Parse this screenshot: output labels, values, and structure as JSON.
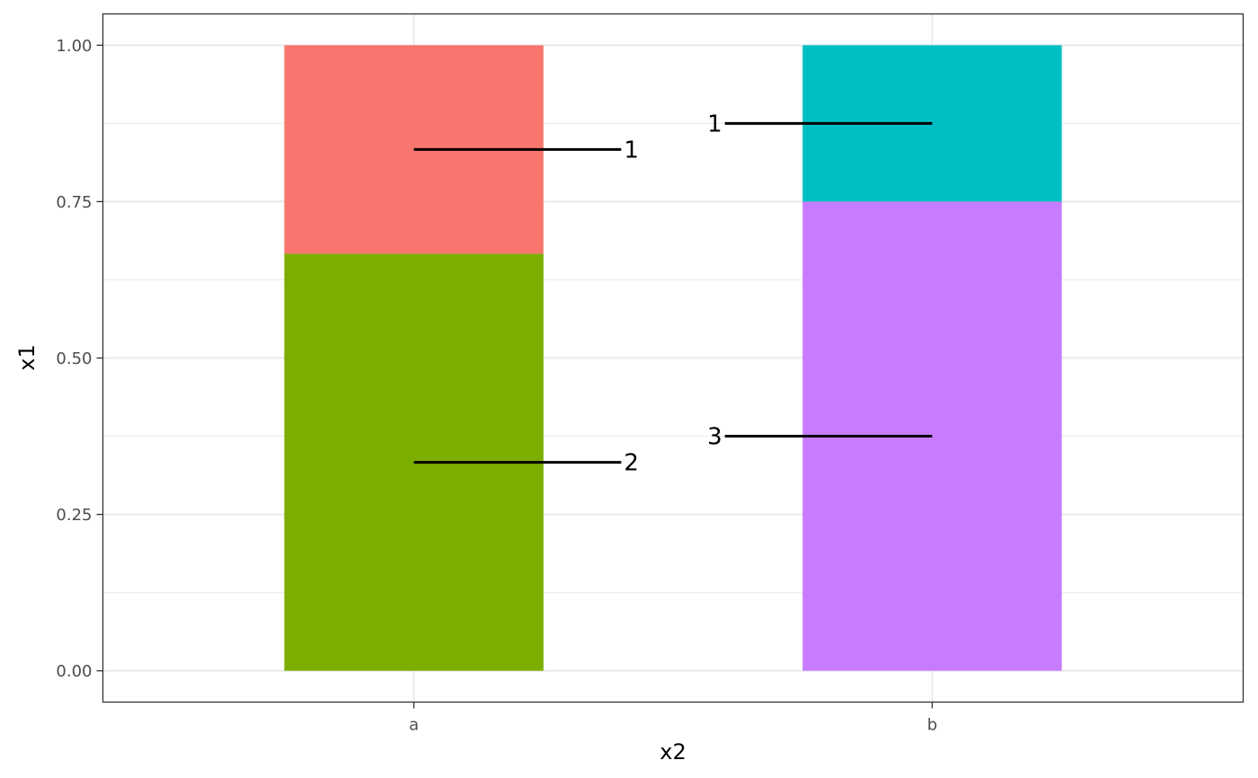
{
  "chart_data": {
    "type": "bar",
    "stacked": true,
    "xlabel": "x2",
    "ylabel": "x1",
    "categories": [
      "a",
      "b"
    ],
    "ylim": [
      -0.05,
      1.05
    ],
    "y_ticks": [
      "0.00",
      "0.25",
      "0.50",
      "0.75",
      "1.00"
    ],
    "y_tick_values": [
      0,
      0.25,
      0.5,
      0.75,
      1.0
    ],
    "grid": true,
    "segments": [
      {
        "category": "a",
        "ymin": 0.0,
        "ymax": 0.6667,
        "color": "#7CAE00"
      },
      {
        "category": "a",
        "ymin": 0.6667,
        "ymax": 1.0,
        "color": "#F8766D"
      },
      {
        "category": "b",
        "ymin": 0.0,
        "ymax": 0.75,
        "color": "#C77CFF"
      },
      {
        "category": "b",
        "ymin": 0.75,
        "ymax": 1.0,
        "color": "#00BFC4"
      }
    ],
    "annotations": [
      {
        "category": "a",
        "y": 0.8333,
        "label": "1",
        "side": "right"
      },
      {
        "category": "a",
        "y": 0.3333,
        "label": "2",
        "side": "right"
      },
      {
        "category": "b",
        "y": 0.875,
        "label": "1",
        "side": "left"
      },
      {
        "category": "b",
        "y": 0.375,
        "label": "3",
        "side": "left"
      }
    ]
  }
}
